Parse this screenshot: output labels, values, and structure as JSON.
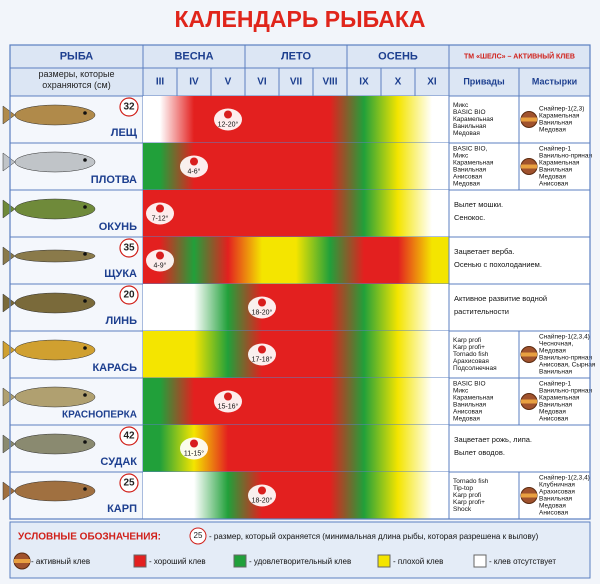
{
  "title": "КАЛЕНДАРЬ РЫБАКА",
  "header": {
    "fish": "РЫБА",
    "sizes": "размеры, которые охраняются (см)",
    "seasons": [
      "ВЕСНА",
      "ЛЕТО",
      "ОСЕНЬ"
    ],
    "months": [
      "III",
      "IV",
      "V",
      "VI",
      "VII",
      "VIII",
      "IX",
      "X",
      "XI"
    ],
    "brand": "ТМ «ШЕЛС» – АКТИВНЫЙ КЛЕВ",
    "baits": "Привады",
    "pastes": "Мастырки"
  },
  "fish": [
    {
      "name": "ЛЕЩ",
      "size": 32,
      "months": [
        4,
        1,
        1,
        1,
        1,
        1,
        2,
        3,
        4
      ],
      "spawn": {
        "month": 2,
        "label": "12-20°"
      },
      "baits": [
        "Микс",
        "BASIC BIO",
        "Карамельная",
        "Ванильная",
        "Медовая"
      ],
      "pastes": [
        "Снайпер-1(2,3)",
        "Карамельная",
        "Ванильная",
        "Медовая"
      ]
    },
    {
      "name": "ПЛОТВА",
      "size": null,
      "months": [
        2,
        1,
        1,
        1,
        1,
        1,
        2,
        3,
        4
      ],
      "spawn": {
        "month": 1,
        "label": "4-6°"
      },
      "baits": [
        "BASIC BIO,",
        "Микс",
        "Карамельная",
        "Ванильная",
        "Анисовая",
        "Медовая"
      ],
      "pastes": [
        "Снайпер-1",
        "Ванильно-пряная",
        "Карамельная",
        "Ванильная",
        "Медовая",
        "Анисовая"
      ]
    },
    {
      "name": "ОКУНЬ",
      "size": null,
      "months": [
        1,
        1,
        1,
        1,
        1,
        1,
        2,
        3,
        4
      ],
      "spawn": {
        "month": 0,
        "label": "7-12°"
      },
      "note": [
        "Вылет мошки.",
        "Сенокос."
      ]
    },
    {
      "name": "ЩУКА",
      "size": 35,
      "months": [
        1,
        2,
        1,
        3,
        3,
        2,
        1,
        1,
        3
      ],
      "spawn": {
        "month": 0,
        "label": "4-9°"
      },
      "note": [
        "Зацветает верба.",
        "Осенью с похолоданием."
      ]
    },
    {
      "name": "ЛИНЬ",
      "size": 20,
      "months": [
        4,
        4,
        2,
        1,
        1,
        1,
        2,
        3,
        4
      ],
      "spawn": {
        "month": 3,
        "label": "18-20°"
      },
      "note": [
        "Активное развитие водной",
        "растительности"
      ]
    },
    {
      "name": "КАРАСЬ",
      "size": null,
      "months": [
        3,
        3,
        2,
        1,
        1,
        1,
        2,
        3,
        4
      ],
      "spawn": {
        "month": 3,
        "label": "17-18°"
      },
      "baits": [
        "Karp profi",
        "Karp profi+",
        "Tornado fish",
        "Арахисовая",
        "Подсолнечная"
      ],
      "pastes": [
        "Снайпер-1(2,3,4)",
        "Чесночная,",
        "Медовая",
        "Ванильно-пряная",
        "Анисовая, Сырная",
        "Ванильная"
      ]
    },
    {
      "name": "КРАСНОПЕРКА",
      "size": null,
      "months": [
        2,
        1,
        1,
        1,
        1,
        1,
        2,
        3,
        4
      ],
      "spawn": {
        "month": 2,
        "label": "15-16°"
      },
      "baits": [
        "BASIC BIO",
        "Микс",
        "Карамельная",
        "Ванильная",
        "Анисовая",
        "Медовая"
      ],
      "pastes": [
        "Снайпер-1",
        "Ванильно-пряная",
        "Карамельная",
        "Ванильная",
        "Медовая",
        "Анисовая"
      ]
    },
    {
      "name": "СУДАК",
      "size": 42,
      "months": [
        2,
        3,
        1,
        1,
        1,
        1,
        2,
        3,
        4
      ],
      "spawn": {
        "month": 1,
        "label": "11-15°"
      },
      "note": [
        "Зацветает рожь, липа.",
        "Вылет оводов."
      ]
    },
    {
      "name": "КАРП",
      "size": 25,
      "months": [
        4,
        4,
        2,
        1,
        1,
        1,
        2,
        3,
        4
      ],
      "spawn": {
        "month": 3,
        "label": "18-20°"
      },
      "baits": [
        "Tornado fish",
        "Tip-top",
        "Karp profi",
        "Karp profi+",
        "Shock"
      ],
      "pastes": [
        "Снайпер-1(2,3,4)",
        "Клубничная",
        "Арахисовая",
        "Ванильная",
        "Медовая",
        "Анисовая"
      ]
    }
  ],
  "legend": {
    "title": "УСЛОВНЫЕ ОБОЗНАЧЕНИЯ:",
    "size_sample": 25,
    "size_text": "- размер, который охраняется (минимальная длина рыбы, которая разрешена к вылову)",
    "items": [
      {
        "label": "- активный клев"
      },
      {
        "label": "- хороший клев",
        "color": "#e3201f"
      },
      {
        "label": "- удовлетворительный клев",
        "color": "#21a03a"
      },
      {
        "label": "- плохой клев",
        "color": "#f4e500"
      },
      {
        "label": "- клев отсутствует",
        "color": "#ffffff"
      }
    ]
  }
}
